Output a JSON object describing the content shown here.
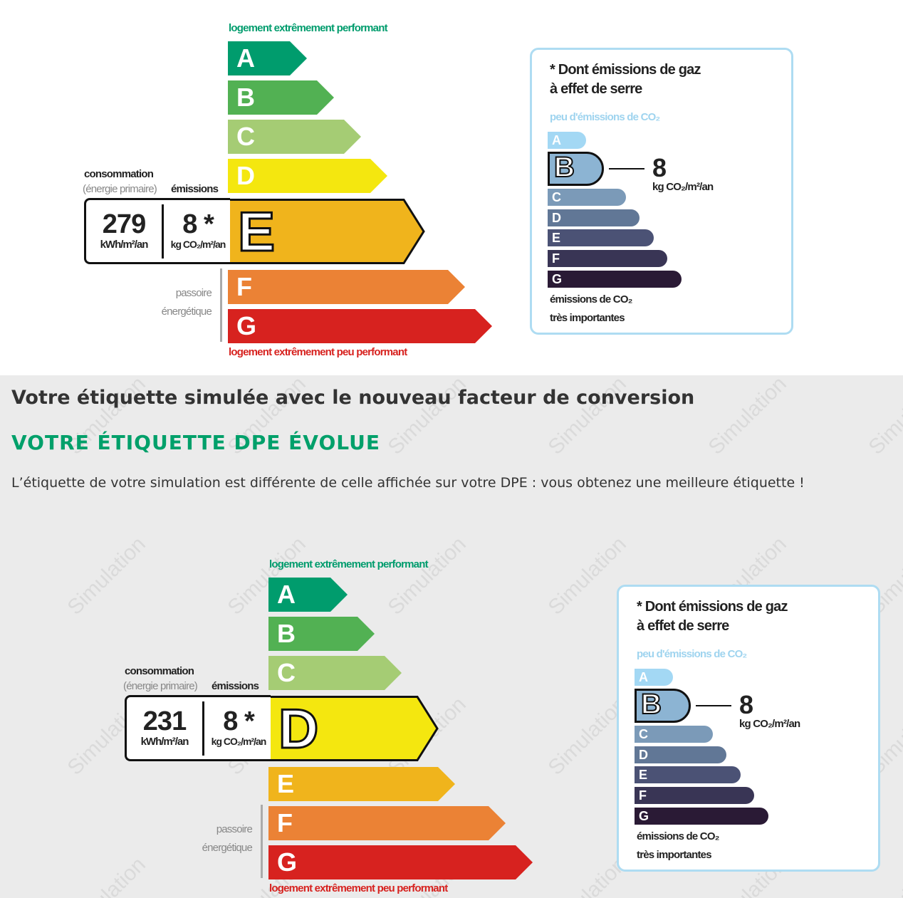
{
  "energy_scale": {
    "top_text": "logement extrêmement performant",
    "bottom_text": "logement extrêmement peu performant",
    "classes": [
      "A",
      "B",
      "C",
      "D",
      "E",
      "F",
      "G"
    ],
    "colors": [
      "#009c6d",
      "#52b153",
      "#a5cc74",
      "#f4e70f",
      "#f0b41c",
      "#eb8235",
      "#d7221f"
    ],
    "consumption_label": "consommation",
    "primary_label": "(énergie primaire)",
    "emissions_label": "émissions",
    "passoire": "passoire",
    "energetique": "énergétique"
  },
  "ghg_scale": {
    "title1": "* Dont émissions de gaz",
    "title2": "à effet de serre",
    "low": "peu d'émissions de CO₂",
    "high1": "émissions de CO₂",
    "high2": "très importantes",
    "classes": [
      "A",
      "B",
      "C",
      "D",
      "E",
      "F",
      "G"
    ],
    "colors": [
      "#a3d8f4",
      "#8cb4d3",
      "#7b9ab8",
      "#617796",
      "#4b5275",
      "#393555",
      "#2a1a35"
    ]
  },
  "current_label": {
    "energy_class": "E",
    "consumption": "279",
    "consumption_unit": "kWh/m²/an",
    "emissions": "8 *",
    "emissions_unit": "kg CO₂/m²/an",
    "ghg_class": "B",
    "ghg_value": "8",
    "ghg_unit": "kg CO₂/m²/an"
  },
  "simulated_label": {
    "energy_class": "D",
    "consumption": "231",
    "consumption_unit": "kWh/m²/an",
    "emissions": "8 *",
    "emissions_unit": "kg CO₂/m²/an",
    "ghg_class": "B",
    "ghg_value": "8",
    "ghg_unit": "kg CO₂/m²/an"
  },
  "section": {
    "title": "Votre étiquette simulée avec le nouveau facteur de conversion",
    "heading": "VOTRE ÉTIQUETTE DPE ÉVOLUE",
    "message": "L’étiquette de votre simulation est différente de celle affichée sur votre DPE : vous obtenez une meilleure étiquette !",
    "watermark": "Simulation"
  }
}
